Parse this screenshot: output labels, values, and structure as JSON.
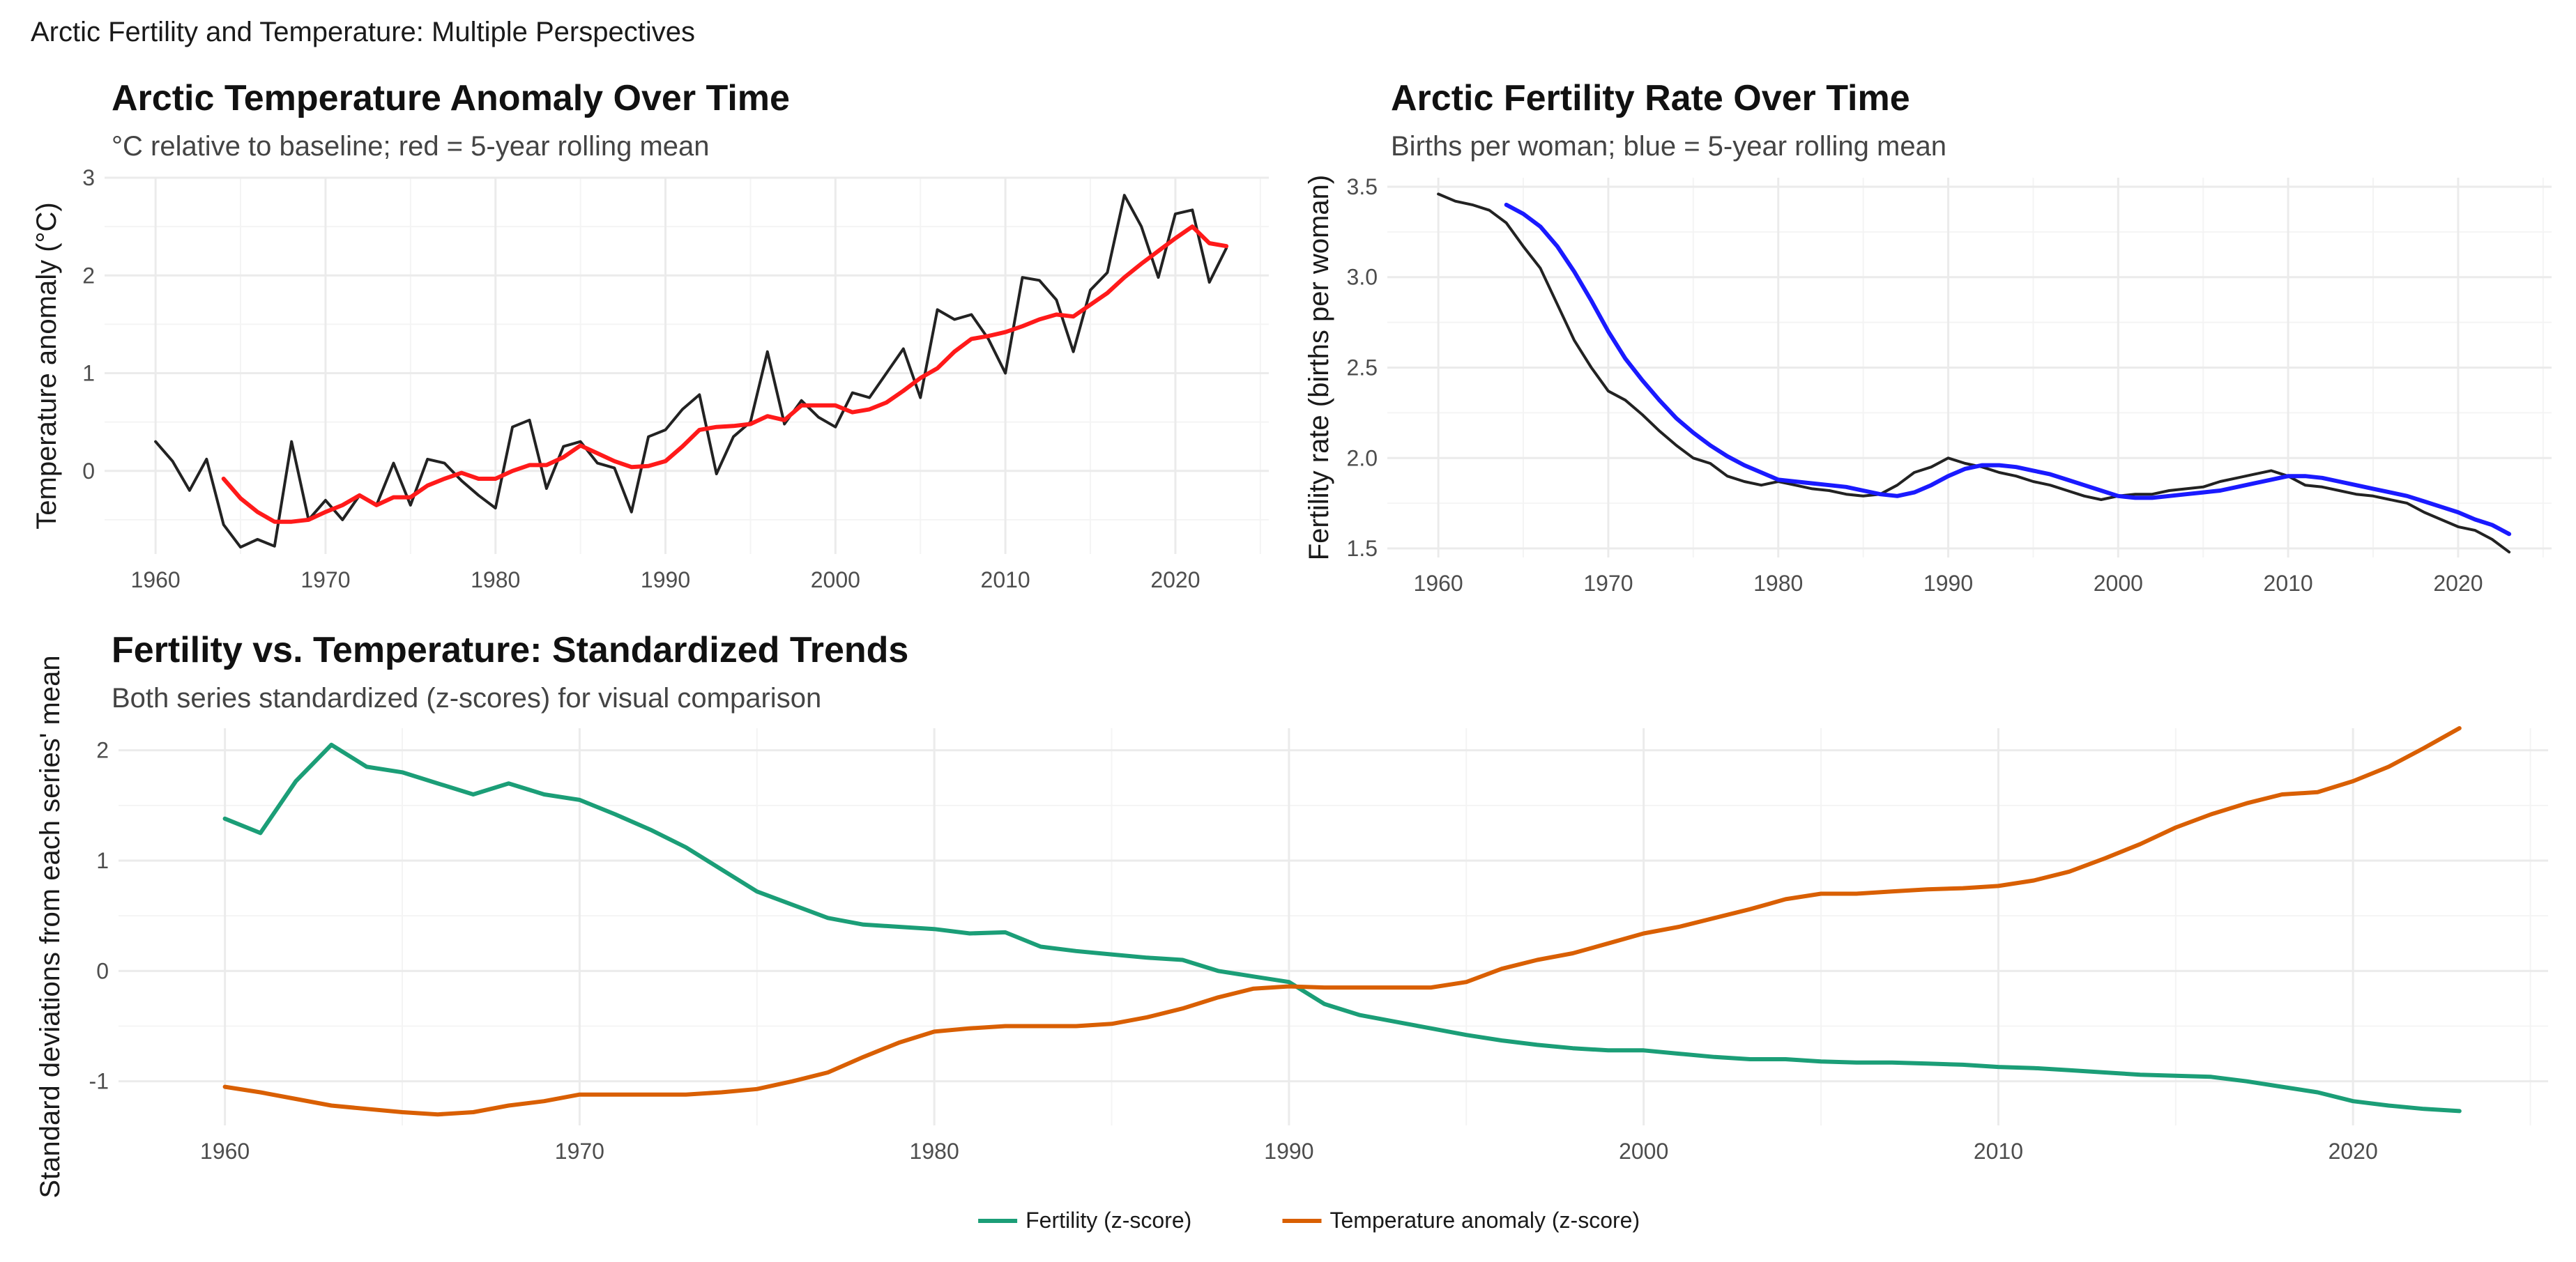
{
  "page_title": "Arctic Fertility and Temperature: Multiple Perspectives",
  "chart_data": [
    {
      "id": "temp",
      "type": "line",
      "title": "Arctic Temperature Anomaly Over Time",
      "subtitle": "°C relative to baseline; red = 5-year rolling mean",
      "xlabel": "",
      "ylabel": "Temperature anomaly (°C)",
      "xlim": [
        1957,
        2025.5
      ],
      "ylim": [
        -0.85,
        3.0
      ],
      "x_ticks": [
        1960,
        1970,
        1980,
        1990,
        2000,
        2010,
        2020
      ],
      "x_tick_labels": [
        "1960",
        "1970",
        "1980",
        "1990",
        "2000",
        "2010",
        "2020"
      ],
      "y_ticks": [
        0,
        1,
        2,
        3
      ],
      "y_tick_labels": [
        "0",
        "1",
        "2",
        "3"
      ],
      "grid": true,
      "series": [
        {
          "color": "#222222",
          "x": [
            1960,
            1961,
            1962,
            1963,
            1964,
            1965,
            1966,
            1967,
            1968,
            1969,
            1970,
            1971,
            1972,
            1973,
            1974,
            1975,
            1976,
            1977,
            1978,
            1979,
            1980,
            1981,
            1982,
            1983,
            1984,
            1985,
            1986,
            1987,
            1988,
            1989,
            1990,
            1991,
            1992,
            1993,
            1994,
            1995,
            1996,
            1997,
            1998,
            1999,
            2000,
            2001,
            2002,
            2003,
            2004,
            2005,
            2006,
            2007,
            2008,
            2009,
            2010,
            2011,
            2012,
            2013,
            2014,
            2015,
            2016,
            2017,
            2018,
            2019,
            2020,
            2021,
            2022,
            2023
          ],
          "values": [
            0.3,
            0.1,
            -0.2,
            0.12,
            -0.55,
            -0.78,
            -0.7,
            -0.77,
            0.3,
            -0.5,
            -0.3,
            -0.5,
            -0.25,
            -0.35,
            0.08,
            -0.35,
            0.12,
            0.08,
            -0.1,
            -0.25,
            -0.38,
            0.45,
            0.52,
            -0.18,
            0.25,
            0.3,
            0.08,
            0.03,
            -0.42,
            0.35,
            0.42,
            0.63,
            0.78,
            -0.03,
            0.35,
            0.5,
            1.22,
            0.48,
            0.72,
            0.55,
            0.45,
            0.8,
            0.75,
            1.0,
            1.25,
            0.75,
            1.65,
            1.55,
            1.6,
            1.35,
            1.0,
            1.98,
            1.95,
            1.75,
            1.22,
            1.85,
            2.03,
            2.82,
            2.5,
            1.98,
            2.63,
            2.67,
            1.93,
            2.28
          ]
        },
        {
          "color": "#ff1a1a",
          "x": [
            1964,
            1965,
            1966,
            1967,
            1968,
            1969,
            1970,
            1971,
            1972,
            1973,
            1974,
            1975,
            1976,
            1977,
            1978,
            1979,
            1980,
            1981,
            1982,
            1983,
            1984,
            1985,
            1986,
            1987,
            1988,
            1989,
            1990,
            1991,
            1992,
            1993,
            1994,
            1995,
            1996,
            1997,
            1998,
            1999,
            2000,
            2001,
            2002,
            2003,
            2004,
            2005,
            2006,
            2007,
            2008,
            2009,
            2010,
            2011,
            2012,
            2013,
            2014,
            2015,
            2016,
            2017,
            2018,
            2019,
            2020,
            2021,
            2022,
            2023
          ],
          "values": [
            -0.08,
            -0.28,
            -0.42,
            -0.52,
            -0.52,
            -0.5,
            -0.42,
            -0.35,
            -0.25,
            -0.35,
            -0.27,
            -0.27,
            -0.15,
            -0.08,
            -0.02,
            -0.08,
            -0.08,
            0.0,
            0.06,
            0.06,
            0.14,
            0.26,
            0.18,
            0.1,
            0.04,
            0.05,
            0.1,
            0.25,
            0.42,
            0.45,
            0.46,
            0.48,
            0.56,
            0.52,
            0.67,
            0.67,
            0.67,
            0.6,
            0.63,
            0.7,
            0.82,
            0.95,
            1.05,
            1.22,
            1.35,
            1.38,
            1.42,
            1.48,
            1.55,
            1.6,
            1.58,
            1.7,
            1.82,
            1.98,
            2.12,
            2.25,
            2.38,
            2.5,
            2.33,
            2.3
          ]
        }
      ]
    },
    {
      "id": "fert",
      "type": "line",
      "title": "Arctic Fertility Rate Over Time",
      "subtitle": "Births per woman; blue = 5-year rolling mean",
      "xlabel": "",
      "ylabel": "Fertility rate (births per woman)",
      "xlim": [
        1957,
        2025.5
      ],
      "ylim": [
        1.45,
        3.55
      ],
      "x_ticks": [
        1960,
        1970,
        1980,
        1990,
        2000,
        2010,
        2020
      ],
      "x_tick_labels": [
        "1960",
        "1970",
        "1980",
        "1990",
        "2000",
        "2010",
        "2020"
      ],
      "y_ticks": [
        1.5,
        2.0,
        2.5,
        3.0,
        3.5
      ],
      "y_tick_labels": [
        "1.5",
        "2.0",
        "2.5",
        "3.0",
        "3.5"
      ],
      "grid": true,
      "series": [
        {
          "color": "#222222",
          "x": [
            1960,
            1961,
            1962,
            1963,
            1964,
            1965,
            1966,
            1967,
            1968,
            1969,
            1970,
            1971,
            1972,
            1973,
            1974,
            1975,
            1976,
            1977,
            1978,
            1979,
            1980,
            1981,
            1982,
            1983,
            1984,
            1985,
            1986,
            1987,
            1988,
            1989,
            1990,
            1991,
            1992,
            1993,
            1994,
            1995,
            1996,
            1997,
            1998,
            1999,
            2000,
            2001,
            2002,
            2003,
            2004,
            2005,
            2006,
            2007,
            2008,
            2009,
            2010,
            2011,
            2012,
            2013,
            2014,
            2015,
            2016,
            2017,
            2018,
            2019,
            2020,
            2021,
            2022,
            2023
          ],
          "values": [
            3.46,
            3.42,
            3.4,
            3.37,
            3.3,
            3.17,
            3.05,
            2.85,
            2.65,
            2.5,
            2.37,
            2.32,
            2.24,
            2.15,
            2.07,
            2.0,
            1.97,
            1.9,
            1.87,
            1.85,
            1.87,
            1.85,
            1.83,
            1.82,
            1.8,
            1.79,
            1.8,
            1.85,
            1.92,
            1.95,
            2.0,
            1.97,
            1.95,
            1.92,
            1.9,
            1.87,
            1.85,
            1.82,
            1.79,
            1.77,
            1.79,
            1.8,
            1.8,
            1.82,
            1.83,
            1.84,
            1.87,
            1.89,
            1.91,
            1.93,
            1.9,
            1.85,
            1.84,
            1.82,
            1.8,
            1.79,
            1.77,
            1.75,
            1.7,
            1.66,
            1.62,
            1.6,
            1.55,
            1.48
          ]
        },
        {
          "color": "#1a1aff",
          "x": [
            1964,
            1965,
            1966,
            1967,
            1968,
            1969,
            1970,
            1971,
            1972,
            1973,
            1974,
            1975,
            1976,
            1977,
            1978,
            1979,
            1980,
            1981,
            1982,
            1983,
            1984,
            1985,
            1986,
            1987,
            1988,
            1989,
            1990,
            1991,
            1992,
            1993,
            1994,
            1995,
            1996,
            1997,
            1998,
            1999,
            2000,
            2001,
            2002,
            2003,
            2004,
            2005,
            2006,
            2007,
            2008,
            2009,
            2010,
            2011,
            2012,
            2013,
            2014,
            2015,
            2016,
            2017,
            2018,
            2019,
            2020,
            2021,
            2022,
            2023
          ],
          "values": [
            3.4,
            3.35,
            3.28,
            3.17,
            3.03,
            2.87,
            2.7,
            2.55,
            2.43,
            2.32,
            2.22,
            2.14,
            2.07,
            2.01,
            1.96,
            1.92,
            1.88,
            1.87,
            1.86,
            1.85,
            1.84,
            1.82,
            1.8,
            1.79,
            1.81,
            1.85,
            1.9,
            1.94,
            1.96,
            1.96,
            1.95,
            1.93,
            1.91,
            1.88,
            1.85,
            1.82,
            1.79,
            1.78,
            1.78,
            1.79,
            1.8,
            1.81,
            1.82,
            1.84,
            1.86,
            1.88,
            1.9,
            1.9,
            1.89,
            1.87,
            1.85,
            1.83,
            1.81,
            1.79,
            1.76,
            1.73,
            1.7,
            1.66,
            1.63,
            1.58
          ]
        }
      ]
    },
    {
      "id": "z",
      "type": "line",
      "title": "Fertility vs. Temperature: Standardized Trends",
      "subtitle": "Both series standardized (z-scores) for visual comparison",
      "xlabel": "",
      "ylabel": "Standard deviations from each series' mean",
      "xlim": [
        1957,
        2025.5
      ],
      "ylim": [
        -1.4,
        2.2
      ],
      "x_ticks": [
        1960,
        1970,
        1980,
        1990,
        2000,
        2010,
        2020
      ],
      "x_tick_labels": [
        "1960",
        "1970",
        "1980",
        "1990",
        "2000",
        "2010",
        "2020"
      ],
      "y_ticks": [
        -1,
        0,
        1,
        2
      ],
      "y_tick_labels": [
        "-1",
        "0",
        "1",
        "2"
      ],
      "grid": true,
      "legend_position": "bottom",
      "series": [
        {
          "name": "Fertility (z-score)",
          "color": "#1b9e77",
          "x": [
            1960,
            1961,
            1962,
            1963,
            1964,
            1965,
            1966,
            1967,
            1968,
            1969,
            1970,
            1971,
            1972,
            1973,
            1974,
            1975,
            1976,
            1977,
            1978,
            1979,
            1980,
            1981,
            1982,
            1983,
            1984,
            1985,
            1986,
            1987,
            1988,
            1989,
            1990,
            1991,
            1992,
            1993,
            1994,
            1995,
            1996,
            1997,
            1998,
            1999,
            2000,
            2001,
            2002,
            2003,
            2004,
            2005,
            2006,
            2007,
            2008,
            2009,
            2010,
            2011,
            2012,
            2013,
            2014,
            2015,
            2016,
            2017,
            2018,
            2019,
            2020,
            2021,
            2022,
            2023
          ],
          "values": [
            1.38,
            1.25,
            1.72,
            2.05,
            1.85,
            1.8,
            1.7,
            1.6,
            1.7,
            1.6,
            1.55,
            1.42,
            1.28,
            1.12,
            0.92,
            0.72,
            0.6,
            0.48,
            0.42,
            0.4,
            0.38,
            0.34,
            0.35,
            0.22,
            0.18,
            0.15,
            0.12,
            0.1,
            0.0,
            -0.05,
            -0.1,
            -0.3,
            -0.4,
            -0.46,
            -0.52,
            -0.58,
            -0.63,
            -0.67,
            -0.7,
            -0.72,
            -0.72,
            -0.75,
            -0.78,
            -0.8,
            -0.8,
            -0.82,
            -0.83,
            -0.83,
            -0.84,
            -0.85,
            -0.87,
            -0.88,
            -0.9,
            -0.92,
            -0.94,
            -0.95,
            -0.96,
            -1.0,
            -1.05,
            -1.1,
            -1.18,
            -1.22,
            -1.25,
            -1.27
          ]
        },
        {
          "name": "Temperature anomaly (z-score)",
          "color": "#d95f02",
          "x": [
            1960,
            1961,
            1962,
            1963,
            1964,
            1965,
            1966,
            1967,
            1968,
            1969,
            1970,
            1971,
            1972,
            1973,
            1974,
            1975,
            1976,
            1977,
            1978,
            1979,
            1980,
            1981,
            1982,
            1983,
            1984,
            1985,
            1986,
            1987,
            1988,
            1989,
            1990,
            1991,
            1992,
            1993,
            1994,
            1995,
            1996,
            1997,
            1998,
            1999,
            2000,
            2001,
            2002,
            2003,
            2004,
            2005,
            2006,
            2007,
            2008,
            2009,
            2010,
            2011,
            2012,
            2013,
            2014,
            2015,
            2016,
            2017,
            2018,
            2019,
            2020,
            2021,
            2022,
            2023
          ],
          "values": [
            -1.05,
            -1.1,
            -1.16,
            -1.22,
            -1.25,
            -1.28,
            -1.3,
            -1.28,
            -1.22,
            -1.18,
            -1.12,
            -1.12,
            -1.12,
            -1.12,
            -1.1,
            -1.07,
            -1.0,
            -0.92,
            -0.78,
            -0.65,
            -0.55,
            -0.52,
            -0.5,
            -0.5,
            -0.5,
            -0.48,
            -0.42,
            -0.34,
            -0.24,
            -0.16,
            -0.14,
            -0.15,
            -0.15,
            -0.15,
            -0.15,
            -0.1,
            0.02,
            0.1,
            0.16,
            0.25,
            0.34,
            0.4,
            0.48,
            0.56,
            0.65,
            0.7,
            0.7,
            0.72,
            0.74,
            0.75,
            0.77,
            0.82,
            0.9,
            1.02,
            1.15,
            1.3,
            1.42,
            1.52,
            1.6,
            1.62,
            1.72,
            1.85,
            2.02,
            2.2
          ]
        }
      ]
    }
  ]
}
